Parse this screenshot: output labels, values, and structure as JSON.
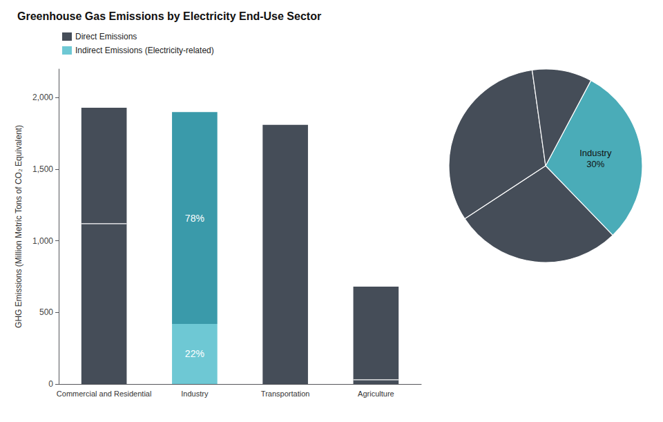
{
  "chart_data": [
    {
      "type": "bar",
      "title": "Greenhouse Gas Emissions by Electricity End-Use Sector",
      "ylabel": "GHG Emissions (Million Metric Tons of CO₂ Equivalent)",
      "categories": [
        "Commercial and Residential",
        "Industry",
        "Transportation",
        "Agriculture"
      ],
      "stacked": true,
      "legend": "upper left",
      "grid": false,
      "series": [
        {
          "name": "Direct Emissions",
          "color": "#454d58",
          "colors": [
            "#454d58",
            "#3a9aaa",
            "#454d58",
            "#454d58"
          ],
          "values": [
            1930,
            1480,
            1810,
            680
          ],
          "splits": [
            1120,
            null,
            null,
            30
          ]
        },
        {
          "name": "Indirect Emissions (Electricity-related)",
          "color": "#6ec8d4",
          "values": [
            null,
            420,
            null,
            null
          ]
        }
      ],
      "annotations": [
        {
          "category": "Industry",
          "series": "Indirect Emissions (Electricity-related)",
          "text": "22%"
        },
        {
          "category": "Industry",
          "series": "Direct Emissions",
          "text": "78%"
        }
      ],
      "ylim": [
        0,
        2200
      ],
      "yticks": [
        0,
        500,
        {
          "value": 1000,
          "label": "1,000"
        },
        {
          "value": 1500,
          "label": "1,500"
        },
        {
          "value": 2000,
          "label": "2,000"
        }
      ]
    },
    {
      "type": "pie",
      "values": [
        30,
        28,
        32,
        10
      ],
      "colors": [
        "#4aacb8",
        "#454d58",
        "#454d58",
        "#454d58"
      ],
      "value_labels": [
        "Industry\n30%",
        null,
        null,
        null
      ],
      "data_labels": true
    }
  ]
}
